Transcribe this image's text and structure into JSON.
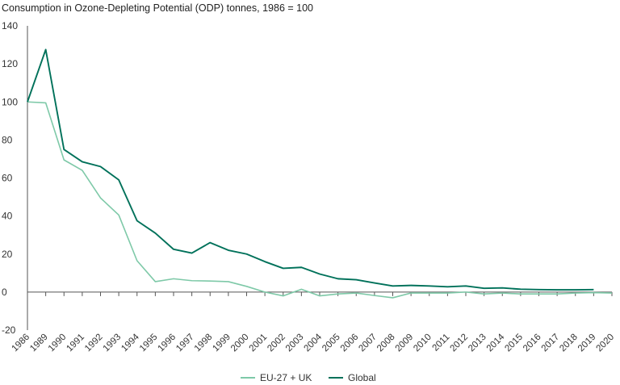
{
  "chart_data": {
    "type": "line",
    "title": "Consumption in Ozone-Depleting Potential (ODP) tonnes, 1986 = 100",
    "xlabel": "",
    "ylabel": "",
    "ylim": [
      -20,
      140
    ],
    "yticks": [
      -20,
      0,
      20,
      40,
      60,
      80,
      100,
      120,
      140
    ],
    "grid": false,
    "legend": "bottom-center",
    "categories": [
      "1986",
      "1989",
      "1990",
      "1991",
      "1992",
      "1993",
      "1994",
      "1995",
      "1996",
      "1997",
      "1998",
      "1999",
      "2000",
      "2001",
      "2002",
      "2003",
      "2004",
      "2005",
      "2006",
      "2007",
      "2008",
      "2009",
      "2010",
      "2011",
      "2012",
      "2013",
      "2014",
      "2015",
      "2016",
      "2017",
      "2018",
      "2019",
      "2020"
    ],
    "series": [
      {
        "name": "EU-27 + UK",
        "color": "#7ec9a8",
        "values": [
          100,
          99.5,
          69.5,
          64,
          49.5,
          40.5,
          16.5,
          5.5,
          7,
          6,
          5.8,
          5.5,
          3,
          0,
          -2,
          1.5,
          -2,
          -1,
          -0.5,
          -1.8,
          -3,
          -0.5,
          -0.5,
          -0.5,
          0,
          -1,
          -0.5,
          -1,
          -1,
          -1,
          -0.5,
          -0.3,
          -0.5
        ]
      },
      {
        "name": "Global",
        "color": "#00715a",
        "values": [
          100,
          127.5,
          75,
          68.5,
          66,
          59,
          37.5,
          31,
          22.5,
          20.5,
          26,
          22,
          20,
          16,
          12.5,
          13,
          9.5,
          7,
          6.5,
          4.8,
          3.2,
          3.5,
          3.2,
          2.8,
          3.2,
          2,
          2.2,
          1.5,
          1.3,
          1.2,
          1.2,
          1.3,
          null
        ]
      }
    ]
  }
}
